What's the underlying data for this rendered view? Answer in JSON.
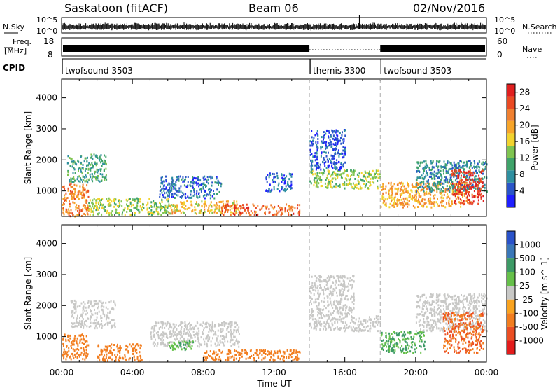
{
  "header": {
    "station": "Saskatoon (fitACF)",
    "beam": "Beam 06",
    "date": "02/Nov/2016"
  },
  "nsky_panel": {
    "label": "N.Sky",
    "ticks_left": [
      "10^5",
      "10^0"
    ],
    "right_label": "N.Search",
    "ticks_right": [
      "10^5",
      "10^0"
    ]
  },
  "freq_panel": {
    "label_line1": "Freq.",
    "label_line2": "[MHz]",
    "ticks_left": [
      "18",
      "8"
    ],
    "right_label": "Nave",
    "ticks_right": [
      "60",
      "0"
    ]
  },
  "cpid_panel": {
    "label": "CPID",
    "segments": [
      {
        "name": "twofsound 3503",
        "start_hour": 0
      },
      {
        "name": "themis 3300",
        "start_hour": 14
      },
      {
        "name": "twofsound 3503",
        "start_hour": 18
      }
    ]
  },
  "chart_data": [
    {
      "type": "heatmap",
      "title": "Power",
      "ylabel": "Slant Range [km]",
      "xlabel": "",
      "x_range_hours": [
        0,
        24
      ],
      "ylim": [
        180,
        4600
      ],
      "yticks": [
        "1000",
        "2000",
        "3000",
        "4000"
      ],
      "xticks": [],
      "colorbar": {
        "label": "Power [dB]",
        "ticks": [
          "4",
          "8",
          "12",
          "16",
          "20",
          "24",
          "28"
        ],
        "range": [
          0,
          30
        ],
        "colors": [
          "#1f1fff",
          "#2a55c8",
          "#2e8fa0",
          "#3fa36a",
          "#7fc450",
          "#f2d32e",
          "#f7a52a",
          "#f08030",
          "#ea4a23",
          "#e01f1f"
        ]
      },
      "backscatter_bands": [
        {
          "t": [
            0.0,
            1.5
          ],
          "r": [
            200,
            1300
          ],
          "level": 22
        },
        {
          "t": [
            0.3,
            2.5
          ],
          "r": [
            1300,
            2200
          ],
          "level": 10
        },
        {
          "t": [
            1.5,
            6.0
          ],
          "r": [
            250,
            800
          ],
          "level": 14
        },
        {
          "t": [
            5.5,
            9.0
          ],
          "r": [
            800,
            1500
          ],
          "level": 6
        },
        {
          "t": [
            6.0,
            10.0
          ],
          "r": [
            300,
            700
          ],
          "level": 18
        },
        {
          "t": [
            9.0,
            13.5
          ],
          "r": [
            250,
            600
          ],
          "level": 24
        },
        {
          "t": [
            11.5,
            13.0
          ],
          "r": [
            1000,
            1600
          ],
          "level": 5
        },
        {
          "t": [
            14.0,
            18.0
          ],
          "r": [
            1100,
            1700
          ],
          "level": 14
        },
        {
          "t": [
            14.0,
            16.0
          ],
          "r": [
            1700,
            3000
          ],
          "level": 4
        },
        {
          "t": [
            18.0,
            23.0
          ],
          "r": [
            500,
            1300
          ],
          "level": 20
        },
        {
          "t": [
            20.0,
            24.0
          ],
          "r": [
            1000,
            2000
          ],
          "level": 8
        },
        {
          "t": [
            22.0,
            23.8
          ],
          "r": [
            600,
            1700
          ],
          "level": 27
        }
      ]
    },
    {
      "type": "heatmap",
      "title": "Velocity",
      "ylabel": "Slant Range [km]",
      "xlabel": "Time UT",
      "x_range_hours": [
        0,
        24
      ],
      "ylim": [
        180,
        4600
      ],
      "yticks": [
        "1000",
        "2000",
        "3000",
        "4000"
      ],
      "xticks": [
        "00:00",
        "04:00",
        "08:00",
        "12:00",
        "16:00",
        "20:00",
        "00:00"
      ],
      "colorbar": {
        "label": "Velocity [m s^-1]",
        "ticks": [
          "1000",
          "500",
          "100",
          "25",
          "-25",
          "-100",
          "-500",
          "-1000"
        ],
        "colors": [
          "#2a52c9",
          "#3a77b8",
          "#3d9a66",
          "#66c04a",
          "#c8c8c6",
          "#f9a31f",
          "#f27d1e",
          "#eb4e23",
          "#e31c1c"
        ]
      },
      "backscatter_bands": [
        {
          "t": [
            0.0,
            1.5
          ],
          "r": [
            300,
            1100
          ],
          "level": -100
        },
        {
          "t": [
            0.5,
            3.0
          ],
          "r": [
            1300,
            2200
          ],
          "level": 0
        },
        {
          "t": [
            2.0,
            4.5
          ],
          "r": [
            250,
            800
          ],
          "level": -200
        },
        {
          "t": [
            5.0,
            10.0
          ],
          "r": [
            700,
            1500
          ],
          "level": 0
        },
        {
          "t": [
            6.0,
            7.5
          ],
          "r": [
            600,
            900
          ],
          "level": 60
        },
        {
          "t": [
            8.0,
            13.5
          ],
          "r": [
            250,
            600
          ],
          "level": -200
        },
        {
          "t": [
            14.0,
            18.0
          ],
          "r": [
            1200,
            1700
          ],
          "level": 0
        },
        {
          "t": [
            14.0,
            16.5
          ],
          "r": [
            1700,
            3000
          ],
          "level": 0
        },
        {
          "t": [
            18.0,
            20.5
          ],
          "r": [
            500,
            1200
          ],
          "level": 60
        },
        {
          "t": [
            20.0,
            24.0
          ],
          "r": [
            1200,
            2400
          ],
          "level": 0
        },
        {
          "t": [
            21.5,
            23.8
          ],
          "r": [
            500,
            1800
          ],
          "level": -300
        }
      ]
    }
  ]
}
